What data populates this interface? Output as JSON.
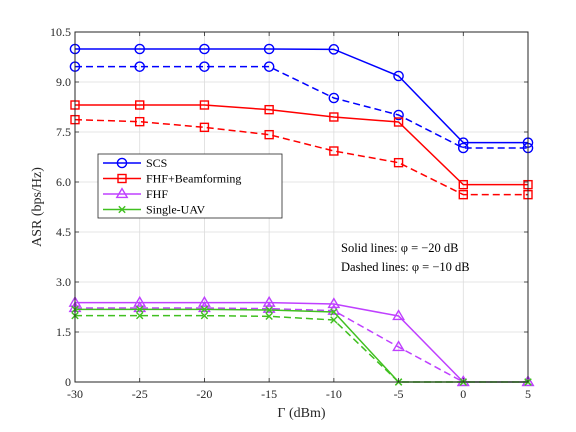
{
  "chart_data": {
    "type": "line",
    "xlabel": "Γ (dBm)",
    "ylabel": "ASR (bps/Hz)",
    "x": [
      -30,
      -25,
      -20,
      -15,
      -10,
      -5,
      0,
      5
    ],
    "xlim": [
      -30,
      5
    ],
    "ylim": [
      0,
      10.5
    ],
    "xticks": [
      "-30",
      "-25",
      "-20",
      "-15",
      "-10",
      "-5",
      "0",
      "5"
    ],
    "yticks": [
      "0",
      "1.5",
      "3.0",
      "4.5",
      "6.0",
      "7.5",
      "9.0",
      "10.5"
    ],
    "xtick_values": [
      -30,
      -25,
      -20,
      -15,
      -10,
      -5,
      0,
      5
    ],
    "ytick_values": [
      0,
      1.5,
      3.0,
      4.5,
      6.0,
      7.5,
      9.0,
      10.5
    ],
    "grid": true,
    "legend": {
      "placement": "left-middle",
      "entries": [
        {
          "name": "SCS",
          "color": "#0000ff",
          "marker": "circle"
        },
        {
          "name": "FHF+Beamforming",
          "color": "#ff0000",
          "marker": "square"
        },
        {
          "name": "FHF",
          "color": "#bf40ff",
          "marker": "triangle"
        },
        {
          "name": "Single-UAV",
          "color": "#40c020",
          "marker": "x"
        }
      ]
    },
    "annotations": [
      {
        "text": "Solid lines: φ = −20 dB"
      },
      {
        "text": "Dashed lines: φ = −10 dB"
      }
    ],
    "series": [
      {
        "group": "SCS",
        "style": "solid",
        "color": "#0000ff",
        "marker": "circle",
        "values": [
          9.99,
          9.99,
          9.99,
          9.99,
          9.98,
          9.18,
          7.18,
          7.18
        ]
      },
      {
        "group": "SCS",
        "style": "dashed",
        "color": "#0000ff",
        "marker": "circle",
        "values": [
          9.46,
          9.46,
          9.46,
          9.46,
          8.52,
          8.01,
          7.02,
          7.02
        ]
      },
      {
        "group": "FHF+Beamforming",
        "style": "solid",
        "color": "#ff0000",
        "marker": "square",
        "values": [
          8.31,
          8.31,
          8.31,
          8.17,
          7.95,
          7.8,
          5.92,
          5.92
        ]
      },
      {
        "group": "FHF+Beamforming",
        "style": "dashed",
        "color": "#ff0000",
        "marker": "square",
        "values": [
          7.87,
          7.81,
          7.64,
          7.42,
          6.93,
          6.58,
          5.62,
          5.62
        ]
      },
      {
        "group": "FHF",
        "style": "solid",
        "color": "#bf40ff",
        "marker": "triangle",
        "values": [
          2.38,
          2.38,
          2.38,
          2.38,
          2.34,
          1.98,
          0.0,
          0.0
        ]
      },
      {
        "group": "FHF",
        "style": "dashed",
        "color": "#bf40ff",
        "marker": "triangle",
        "values": [
          2.22,
          2.22,
          2.22,
          2.2,
          2.14,
          1.05,
          0.0,
          0.0
        ]
      },
      {
        "group": "Single-UAV",
        "style": "solid",
        "color": "#40c020",
        "marker": "x",
        "values": [
          2.18,
          2.18,
          2.18,
          2.16,
          2.1,
          0.0,
          0.0,
          0.0
        ]
      },
      {
        "group": "Single-UAV",
        "style": "dashed",
        "color": "#40c020",
        "marker": "x",
        "values": [
          1.99,
          1.99,
          1.99,
          1.97,
          1.86,
          0.0,
          0.0,
          0.0
        ]
      }
    ]
  }
}
